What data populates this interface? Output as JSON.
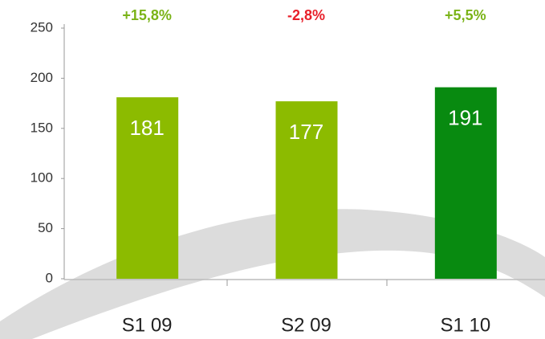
{
  "chart_data": {
    "type": "bar",
    "categories": [
      "S1 09",
      "S2 09",
      "S1 10"
    ],
    "values": [
      181,
      177,
      191
    ],
    "colors": [
      "#8cbb00",
      "#8cbb00",
      "#088a10"
    ],
    "annotations": [
      {
        "text": "+15,8%",
        "color": "#7ab317"
      },
      {
        "text": "-2,8%",
        "color": "#e8202a"
      },
      {
        "text": "+5,5%",
        "color": "#7ab317"
      }
    ],
    "ylim": [
      0,
      250
    ],
    "yticks": [
      0,
      50,
      100,
      150,
      200,
      250
    ],
    "grid": false
  }
}
